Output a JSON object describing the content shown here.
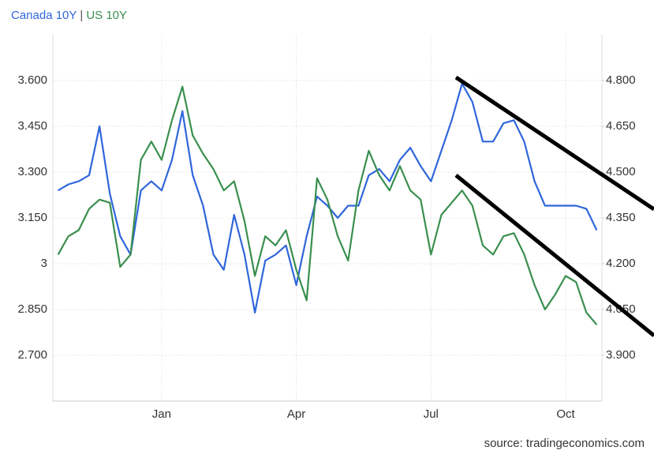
{
  "chart_data": {
    "type": "line",
    "legend_separator": "|",
    "source": "source: tradingeconomics.com",
    "categories": [
      null,
      null,
      null,
      null,
      null,
      null,
      null,
      null,
      null,
      null,
      "Jan",
      null,
      null,
      null,
      null,
      null,
      null,
      null,
      null,
      null,
      null,
      null,
      null,
      "Apr",
      null,
      null,
      null,
      null,
      null,
      null,
      null,
      null,
      null,
      null,
      null,
      null,
      "Jul",
      null,
      null,
      null,
      null,
      null,
      null,
      null,
      null,
      null,
      null,
      null,
      null,
      "Oct",
      null,
      null,
      null
    ],
    "series": [
      {
        "name": "Canada 10Y",
        "color": "#2f66db",
        "axis": "y",
        "values": [
          3.24,
          3.26,
          3.27,
          3.29,
          3.45,
          3.23,
          3.09,
          3.03,
          3.24,
          3.27,
          3.24,
          3.34,
          3.5,
          3.29,
          3.19,
          3.03,
          2.98,
          3.16,
          3.03,
          2.84,
          3.01,
          3.03,
          3.06,
          2.93,
          3.09,
          3.22,
          3.19,
          3.15,
          3.19,
          3.19,
          3.29,
          3.31,
          3.27,
          3.34,
          3.38,
          3.32,
          3.27,
          3.37,
          3.47,
          3.59,
          3.53,
          3.4,
          3.4,
          3.46,
          3.47,
          3.4,
          3.27,
          3.19,
          3.19,
          3.19,
          3.19,
          3.18,
          3.11
        ]
      },
      {
        "name": "US 10Y",
        "color": "#3a8f4e",
        "axis": "y2",
        "values": [
          4.23,
          4.29,
          4.31,
          4.38,
          4.41,
          4.4,
          4.19,
          4.23,
          4.54,
          4.6,
          4.54,
          4.67,
          4.78,
          4.62,
          4.56,
          4.51,
          4.44,
          4.47,
          4.34,
          4.16,
          4.29,
          4.26,
          4.31,
          4.18,
          4.08,
          4.48,
          4.41,
          4.29,
          4.21,
          4.44,
          4.57,
          4.49,
          4.44,
          4.52,
          4.44,
          4.41,
          4.23,
          4.36,
          4.4,
          4.44,
          4.39,
          4.26,
          4.23,
          4.29,
          4.3,
          4.23,
          4.13,
          4.05,
          4.1,
          4.16,
          4.14,
          4.04,
          4.0
        ]
      }
    ],
    "ylim": [
      2.55,
      3.75
    ],
    "yticks": [
      {
        "value": 2.7,
        "label": "2.700"
      },
      {
        "value": 2.85,
        "label": "2.850"
      },
      3,
      {
        "value": 3.15,
        "label": "3.150"
      },
      {
        "value": 3.3,
        "label": "3.300"
      },
      {
        "value": 3.45,
        "label": "3.450"
      },
      {
        "value": 3.6,
        "label": "3.600"
      }
    ],
    "y2lim": [
      3.75,
      4.95
    ],
    "y2ticks": [
      {
        "value": 3.9,
        "label": "3.900"
      },
      {
        "value": 4.05,
        "label": "4.050"
      },
      {
        "value": 4.2,
        "label": "4.200"
      },
      {
        "value": 4.35,
        "label": "4.350"
      },
      {
        "value": 4.5,
        "label": "4.500"
      },
      {
        "value": 4.65,
        "label": "4.650"
      },
      {
        "value": 4.8,
        "label": "4.800"
      }
    ],
    "grid": true
  }
}
